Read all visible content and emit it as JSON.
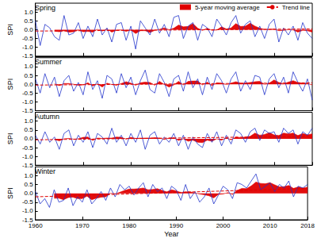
{
  "chart_data": [
    {
      "type": "line",
      "title": "Spring",
      "ylabel": "SPI",
      "tick_labels": "y",
      "legend": "upper right",
      "grid": false,
      "x": [
        1960,
        1961,
        1962,
        1963,
        1964,
        1965,
        1966,
        1967,
        1968,
        1969,
        1970,
        1971,
        1972,
        1973,
        1974,
        1975,
        1976,
        1977,
        1978,
        1979,
        1980,
        1981,
        1982,
        1983,
        1984,
        1985,
        1986,
        1987,
        1988,
        1989,
        1990,
        1991,
        1992,
        1993,
        1994,
        1995,
        1996,
        1997,
        1998,
        1999,
        2000,
        2001,
        2002,
        2003,
        2004,
        2005,
        2006,
        2007,
        2008,
        2009,
        2010,
        2011,
        2012,
        2013,
        2014,
        2015,
        2016,
        2017,
        2018
      ],
      "xlim": [
        1960,
        2018
      ],
      "xticks": [
        1960,
        1970,
        1980,
        1990,
        2000,
        2010,
        2018
      ],
      "ylim": [
        -1.5,
        1.5
      ],
      "yticks": [
        -1.5,
        {
          "value": -1,
          "label": "-1.0"
        },
        -0.5,
        {
          "value": 0,
          "label": "0.0"
        },
        0.5,
        {
          "value": 1,
          "label": "1.0"
        }
      ],
      "series": [
        {
          "color": "#2233cc",
          "values": [
            0.5,
            -0.9,
            0.3,
            0.1,
            -0.4,
            -0.6,
            0.8,
            -0.3,
            -0.2,
            0.4,
            -0.5,
            0.2,
            -0.4,
            0.6,
            -0.3,
            0.1,
            -0.7,
            0.3,
            0.4,
            -0.6,
            0.2,
            -1.1,
            0.5,
            0.1,
            -0.3,
            0.6,
            -0.2,
            0.3,
            -0.4,
            0.7,
            0.8,
            -0.5,
            0.2,
            0.4,
            -0.6,
            0.3,
            0.1,
            -0.4,
            0.6,
            0.2,
            -0.3,
            0.4,
            0.8,
            -0.2,
            0.3,
            0.5,
            -0.4,
            0.2,
            -0.5,
            0.3,
            0.6,
            -0.7,
            0.1,
            -0.3,
            0.2,
            -0.6,
            0.4,
            -0.2,
            -0.5
          ]
        },
        {
          "name": "5-year moving average",
          "type": "area",
          "color": "#e00000",
          "values": [
            null,
            null,
            null,
            null,
            -0.08,
            -0.12,
            -0.06,
            -0.14,
            -0.12,
            -0.02,
            -0.12,
            -0.1,
            -0.14,
            0.02,
            -0.08,
            0.04,
            -0.14,
            -0.04,
            -0.02,
            -0.1,
            -0.02,
            -0.22,
            -0.06,
            -0.06,
            -0.16,
            -0.04,
            0.02,
            0.1,
            0.0,
            0.08,
            0.26,
            0.16,
            0.18,
            0.34,
            0.08,
            -0.04,
            0.08,
            -0.04,
            -0.02,
            0.16,
            0.04,
            0.1,
            0.34,
            0.18,
            0.2,
            0.36,
            0.2,
            0.08,
            0.02,
            0.02,
            0.04,
            -0.06,
            -0.04,
            0.0,
            -0.02,
            -0.14,
            -0.04,
            -0.06,
            -0.14
          ]
        },
        {
          "name": "Trend line",
          "color": "#e00000",
          "line_style": "dashed",
          "x": [
            1960,
            2018
          ],
          "values": [
            -0.08,
            0.04
          ]
        }
      ]
    },
    {
      "type": "line",
      "title": "Summer",
      "ylabel": "SPI",
      "tick_labels": "y",
      "grid": false,
      "x": [
        1960,
        1961,
        1962,
        1963,
        1964,
        1965,
        1966,
        1967,
        1968,
        1969,
        1970,
        1971,
        1972,
        1973,
        1974,
        1975,
        1976,
        1977,
        1978,
        1979,
        1980,
        1981,
        1982,
        1983,
        1984,
        1985,
        1986,
        1987,
        1988,
        1989,
        1990,
        1991,
        1992,
        1993,
        1994,
        1995,
        1996,
        1997,
        1998,
        1999,
        2000,
        2001,
        2002,
        2003,
        2004,
        2005,
        2006,
        2007,
        2008,
        2009,
        2010,
        2011,
        2012,
        2013,
        2014,
        2015,
        2016,
        2017,
        2018
      ],
      "xlim": [
        1960,
        2018
      ],
      "xticks": [
        1960,
        1970,
        1980,
        1990,
        2000,
        2010,
        2018
      ],
      "ylim": [
        -1.5,
        1.5
      ],
      "yticks": [
        -1.5,
        {
          "value": -1,
          "label": "-1.0"
        },
        -0.5,
        {
          "value": 0,
          "label": "0.0"
        },
        0.5,
        {
          "value": 1,
          "label": "1.0"
        }
      ],
      "series": [
        {
          "color": "#2233cc",
          "values": [
            0.3,
            -0.5,
            0.6,
            -0.2,
            0.4,
            -0.7,
            0.2,
            0.5,
            -0.4,
            0.1,
            -0.6,
            0.7,
            -0.3,
            0.2,
            -0.8,
            0.5,
            0.3,
            -0.5,
            0.6,
            -0.2,
            0.4,
            -0.6,
            0.2,
            0.8,
            -0.3,
            -0.5,
            0.6,
            0.1,
            -0.7,
            0.3,
            0.5,
            -0.4,
            0.7,
            -0.2,
            0.3,
            -0.6,
            0.4,
            -0.3,
            0.6,
            0.2,
            -0.5,
            0.3,
            0.7,
            -0.4,
            0.2,
            -0.3,
            0.5,
            0.4,
            -0.6,
            0.3,
            0.6,
            -0.2,
            0.4,
            -0.5,
            0.7,
            0.1,
            -0.4,
            0.3,
            -0.9
          ]
        },
        {
          "name": "5-year moving average",
          "type": "area",
          "color": "#e00000",
          "values": [
            null,
            null,
            null,
            null,
            0.02,
            -0.08,
            0.04,
            0.04,
            0.0,
            -0.06,
            -0.04,
            0.08,
            -0.1,
            0.02,
            -0.16,
            0.06,
            -0.02,
            -0.06,
            0.04,
            0.14,
            0.06,
            -0.06,
            0.08,
            0.12,
            0.1,
            -0.06,
            0.16,
            -0.02,
            -0.16,
            -0.04,
            0.16,
            -0.04,
            0.16,
            0.18,
            0.18,
            -0.04,
            0.12,
            -0.08,
            0.08,
            0.06,
            -0.02,
            0.06,
            0.14,
            0.06,
            0.06,
            0.1,
            0.14,
            0.16,
            0.0,
            0.06,
            0.24,
            0.1,
            0.02,
            0.12,
            0.2,
            0.1,
            0.06,
            0.04,
            -0.04
          ]
        },
        {
          "name": "Trend line",
          "color": "#e00000",
          "line_style": "dashed",
          "x": [
            1960,
            2018
          ],
          "values": [
            -0.05,
            0.08
          ]
        }
      ]
    },
    {
      "type": "line",
      "title": "Autumn",
      "ylabel": "SPI",
      "tick_labels": "y",
      "grid": false,
      "x": [
        1960,
        1961,
        1962,
        1963,
        1964,
        1965,
        1966,
        1967,
        1968,
        1969,
        1970,
        1971,
        1972,
        1973,
        1974,
        1975,
        1976,
        1977,
        1978,
        1979,
        1980,
        1981,
        1982,
        1983,
        1984,
        1985,
        1986,
        1987,
        1988,
        1989,
        1990,
        1991,
        1992,
        1993,
        1994,
        1995,
        1996,
        1997,
        1998,
        1999,
        2000,
        2001,
        2002,
        2003,
        2004,
        2005,
        2006,
        2007,
        2008,
        2009,
        2010,
        2011,
        2012,
        2013,
        2014,
        2015,
        2016,
        2017,
        2018
      ],
      "xlim": [
        1960,
        2018
      ],
      "xticks": [
        1960,
        1970,
        1980,
        1990,
        2000,
        2010,
        2018
      ],
      "ylim": [
        -1.5,
        1.5
      ],
      "yticks": [
        -1.5,
        {
          "value": -1,
          "label": "-1.0"
        },
        -0.5,
        {
          "value": 0,
          "label": "0.0"
        },
        0.5,
        {
          "value": 1,
          "label": "1.0"
        }
      ],
      "series": [
        {
          "color": "#2233cc",
          "values": [
            0.2,
            -0.3,
            0.4,
            -0.2,
            0.1,
            -0.6,
            0.3,
            0.5,
            -0.4,
            0.2,
            -0.2,
            0.4,
            -0.5,
            0.3,
            0.1,
            -0.3,
            0.6,
            -0.2,
            0.2,
            -0.4,
            0.3,
            -0.2,
            0.5,
            -0.6,
            0.2,
            0.4,
            -0.3,
            0.1,
            -0.2,
            0.3,
            -0.4,
            0.2,
            -0.6,
            0.1,
            -0.3,
            -0.5,
            0.3,
            -0.2,
            0.4,
            -0.4,
            0.2,
            -0.3,
            0.5,
            0.3,
            -0.2,
            0.4,
            0.6,
            -0.1,
            0.5,
            0.3,
            0.4,
            -0.2,
            0.6,
            0.3,
            0.5,
            -0.3,
            0.4,
            0.2,
            0.6
          ]
        },
        {
          "name": "5-year moving average",
          "type": "area",
          "color": "#e00000",
          "values": [
            null,
            null,
            null,
            null,
            -0.04,
            -0.12,
            0.0,
            0.02,
            -0.02,
            0.0,
            0.08,
            0.1,
            -0.1,
            0.04,
            0.02,
            0.04,
            0.04,
            0.1,
            0.08,
            -0.02,
            0.08,
            0.02,
            0.04,
            0.04,
            0.04,
            0.06,
            0.04,
            -0.04,
            0.04,
            0.06,
            -0.1,
            0.0,
            -0.14,
            -0.08,
            -0.2,
            -0.22,
            -0.08,
            -0.14,
            0.0,
            -0.08,
            0.06,
            -0.06,
            0.1,
            0.06,
            0.1,
            0.14,
            0.32,
            0.2,
            0.24,
            0.34,
            0.22,
            0.18,
            0.32,
            0.28,
            0.32,
            0.18,
            0.3,
            0.22,
            0.28
          ]
        },
        {
          "name": "Trend line",
          "color": "#e00000",
          "line_style": "dashed",
          "x": [
            1960,
            2018
          ],
          "values": [
            -0.06,
            0.14
          ]
        }
      ]
    },
    {
      "type": "line",
      "title": "Winter",
      "ylabel": "SPI",
      "xlabel": "Year",
      "grid": false,
      "x": [
        1960,
        1961,
        1962,
        1963,
        1964,
        1965,
        1966,
        1967,
        1968,
        1969,
        1970,
        1971,
        1972,
        1973,
        1974,
        1975,
        1976,
        1977,
        1978,
        1979,
        1980,
        1981,
        1982,
        1983,
        1984,
        1985,
        1986,
        1987,
        1988,
        1989,
        1990,
        1991,
        1992,
        1993,
        1994,
        1995,
        1996,
        1997,
        1998,
        1999,
        2000,
        2001,
        2002,
        2003,
        2004,
        2005,
        2006,
        2007,
        2008,
        2009,
        2010,
        2011,
        2012,
        2013,
        2014,
        2015,
        2016,
        2017,
        2018
      ],
      "xlim": [
        1960,
        2018
      ],
      "xticks": [
        1960,
        1970,
        1980,
        1990,
        2000,
        2010,
        2018
      ],
      "ylim": [
        -1.5,
        1.5
      ],
      "yticks": [
        -1.5,
        {
          "value": -1,
          "label": "-1.0"
        },
        -0.5,
        {
          "value": 0,
          "label": "0.0"
        },
        0.5,
        {
          "value": 1,
          "label": "1.0"
        }
      ],
      "series": [
        {
          "color": "#2233cc",
          "values": [
            0.1,
            -0.6,
            -0.3,
            -0.8,
            0.2,
            -0.5,
            -0.4,
            0.3,
            -0.7,
            -0.2,
            -0.5,
            0.2,
            -0.6,
            -0.3,
            0.1,
            -0.4,
            0.3,
            -0.2,
            0.5,
            0.2,
            0.4,
            -0.1,
            0.3,
            0.6,
            -0.2,
            0.5,
            0.1,
            0.3,
            -0.3,
            0.4,
            0.2,
            -0.4,
            0.5,
            -0.3,
            0.1,
            -0.5,
            -0.2,
            0.3,
            -0.6,
            -0.1,
            0.4,
            0.2,
            -0.3,
            0.6,
            0.5,
            0.3,
            0.7,
            1.1,
            0.2,
            0.4,
            0.6,
            0.1,
            0.5,
            0.3,
            0.7,
            -0.2,
            0.4,
            0.3,
            0.5
          ]
        },
        {
          "name": "5-year moving average",
          "type": "area",
          "color": "#e00000",
          "values": [
            null,
            null,
            null,
            null,
            -0.28,
            -0.28,
            -0.36,
            -0.24,
            -0.22,
            -0.3,
            -0.3,
            -0.16,
            -0.36,
            -0.28,
            -0.22,
            -0.2,
            0.0,
            -0.04,
            0.06,
            0.16,
            0.24,
            0.24,
            0.26,
            0.3,
            0.2,
            0.22,
            0.26,
            0.16,
            0.08,
            0.2,
            0.14,
            0.04,
            0.08,
            0.08,
            0.02,
            -0.04,
            -0.08,
            -0.14,
            -0.26,
            -0.06,
            -0.04,
            0.04,
            -0.06,
            0.16,
            0.28,
            0.26,
            0.42,
            0.64,
            0.56,
            0.54,
            0.6,
            0.48,
            0.36,
            0.38,
            0.44,
            0.28,
            0.36,
            0.3,
            0.34
          ]
        },
        {
          "name": "Trend line",
          "color": "#e00000",
          "line_style": "dashed",
          "x": [
            1960,
            2018
          ],
          "values": [
            -0.2,
            0.28
          ]
        }
      ]
    }
  ]
}
